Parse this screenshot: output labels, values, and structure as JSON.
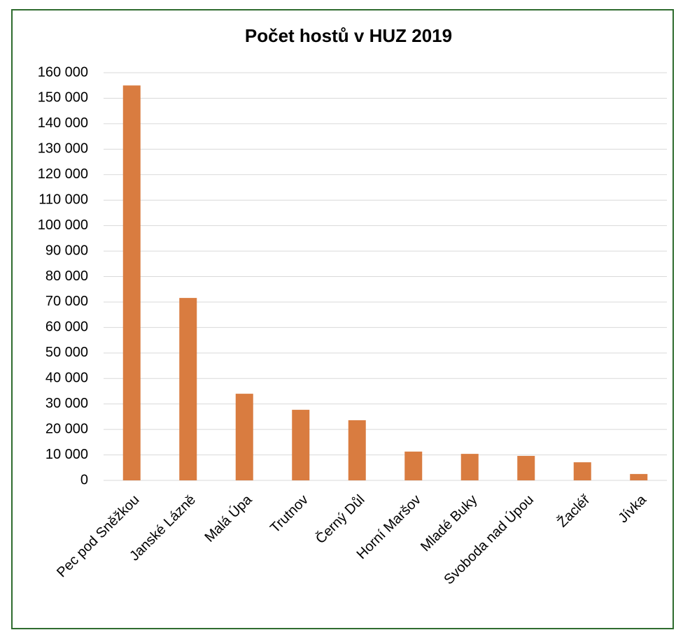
{
  "chart_data": {
    "type": "bar",
    "title": "Počet hostů v HUZ 2019",
    "categories": [
      "Pec pod Sněžkou",
      "Janské Lázně",
      "Malá Úpa",
      "Trutnov",
      "Černý Důl",
      "Horní Maršov",
      "Mladé Buky",
      "Svoboda nad Úpou",
      "Žacléř",
      "Jívka"
    ],
    "values": [
      155000,
      71600,
      34000,
      27700,
      23600,
      11300,
      10400,
      9600,
      7100,
      2500
    ],
    "color": "#d97c40",
    "ylim": [
      0,
      160000
    ],
    "yticks": [
      0,
      {
        "value": 10000,
        "label": "10 000"
      },
      {
        "value": 20000,
        "label": "20 000"
      },
      {
        "value": 30000,
        "label": "30 000"
      },
      {
        "value": 40000,
        "label": "40 000"
      },
      {
        "value": 50000,
        "label": "50 000"
      },
      {
        "value": 60000,
        "label": "60 000"
      },
      {
        "value": 70000,
        "label": "70 000"
      },
      {
        "value": 80000,
        "label": "80 000"
      },
      {
        "value": 90000,
        "label": "90 000"
      },
      {
        "value": 100000,
        "label": "100 000"
      },
      {
        "value": 110000,
        "label": "110 000"
      },
      {
        "value": 120000,
        "label": "120 000"
      },
      {
        "value": 130000,
        "label": "130 000"
      },
      {
        "value": 140000,
        "label": "140 000"
      },
      {
        "value": 150000,
        "label": "150 000"
      },
      {
        "value": 160000,
        "label": "160 000"
      }
    ],
    "grid": true
  }
}
